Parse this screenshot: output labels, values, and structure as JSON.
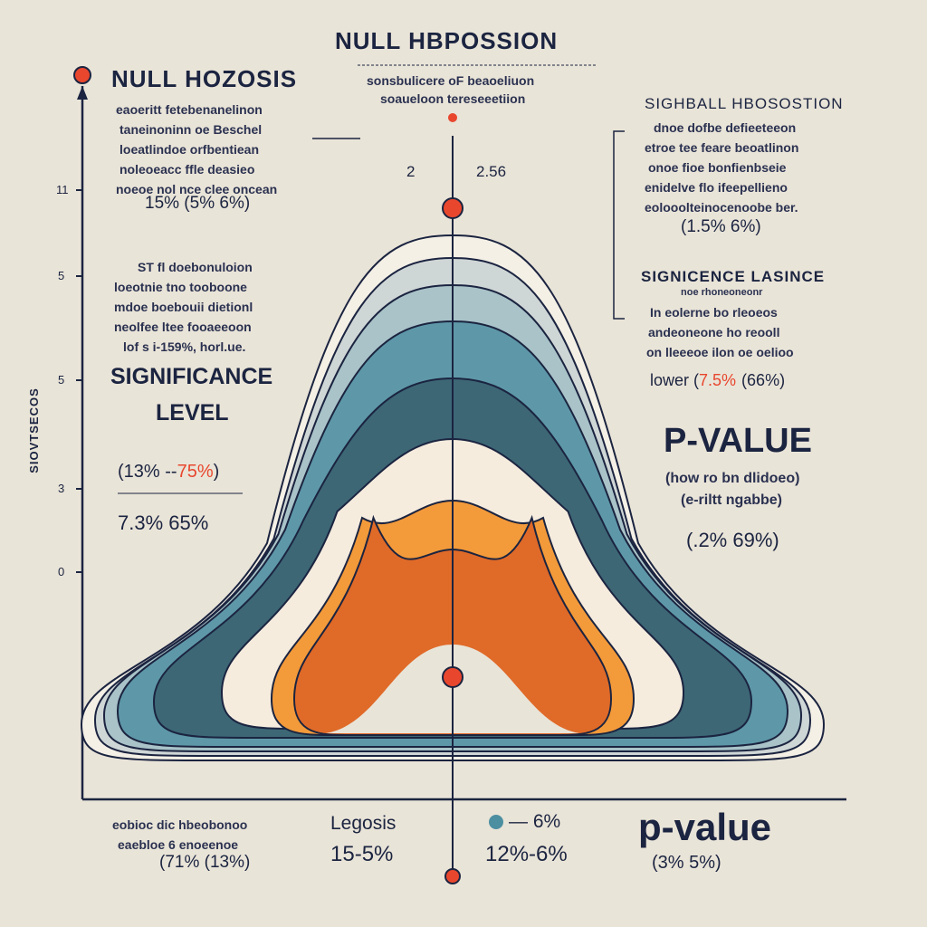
{
  "colors": {
    "background": "#e9e4d8",
    "ink": "#1b2440",
    "accent_red": "#e8472e",
    "band_outer": "#f4f0e6",
    "band_gray": "#cfd6d6",
    "band_light_teal": "#a9c3c8",
    "band_teal": "#5e98a8",
    "band_dark": "#3d6775",
    "band_cream": "#f5ecde",
    "band_orange": "#f39a3a",
    "band_deep_orange": "#e06a28"
  },
  "icons": [
    "red-dot-marker-icon",
    "axis-arrow-icon",
    "teal-dot-legend-icon"
  ],
  "header": {
    "title": "NULL HBPOSSION",
    "subtitle_lines": [
      "sonsbulicere oF beaoeliuon",
      "soaueloon tereseeetiion"
    ]
  },
  "left_panel": {
    "title": "NULL HOZOSIS",
    "desc_lines": [
      "eaoeritt fetebenanelinon",
      "taneinoninn oe Beschel",
      "loeatlindoe orfbentiean",
      "noleoeacc ffle deasieo",
      "noeoe nol nce clee oncean"
    ],
    "range": "15% (5% 6%)",
    "desc2_lines": [
      "ST fl doebonuloion",
      "loeotnie tno tooboone",
      "mdoe boebouii dietionl",
      "neolfee ltee fooaeeoon",
      "lof s i-159%, horl.ue."
    ],
    "sig_title_lines": [
      "SIGNIFICANCE",
      "LEVEL"
    ],
    "sig_range_open": "(13% --",
    "sig_range_red": "75%",
    "sig_range_close": ")",
    "sig_value": "7.3% 65%"
  },
  "center": {
    "top_left_label": "2",
    "top_right_label": "2.56"
  },
  "y_axis": {
    "title": "SIOVTSECOS",
    "ticks": [
      "11",
      "5",
      "5",
      "3",
      "0"
    ]
  },
  "right_panel": {
    "title": "SIGHBALL HBOSOSTION",
    "desc_lines": [
      "dnoe dofbe defieeteeon",
      "etroe tee feare beoatlinon",
      "onoe fioe bonfienbseie",
      "enidelve flo ifeepellieno",
      "eolooolteinocenoobe ber."
    ],
    "range": "(1.5% 6%)",
    "sig_title": "SIGNICENCE LASINCE",
    "sig_sub": "noe rhoneoneonr",
    "sig_lines": [
      "In eolerne bo rleoeos",
      "andeoneone ho reooll",
      "on lleeeoe ilon oe oelioo"
    ],
    "lower_label": "lower (",
    "lower_red": "7.5%",
    "lower_rest": "(66%)",
    "pvalue_title": "P-VALUE",
    "pvalue_lines": [
      "(how ro bn dlidoeo)",
      "(e-riltt ngabbe)"
    ],
    "pvalue_range": "(.2% 69%)"
  },
  "bottom": {
    "left_lines": [
      "eobioc dic hbeobonoo",
      "eaebloe 6 enoeenoe"
    ],
    "left_range": "(71% (13%)",
    "center_label": "Legosis",
    "center_range": "15-5%",
    "mid_legend": "— 6%",
    "mid_range": "12%-6%",
    "pvalue_title": "p-value",
    "pvalue_range": "(3% 5%)"
  }
}
